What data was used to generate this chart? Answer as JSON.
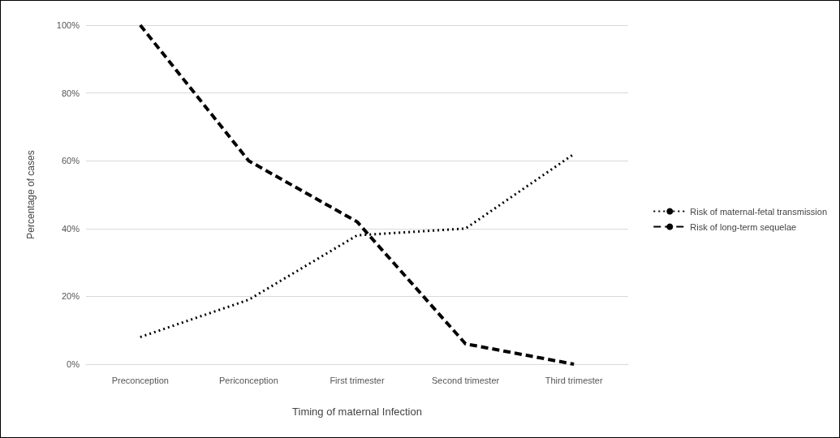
{
  "chart_data": {
    "type": "line",
    "xlabel": "Timing of maternal Infection",
    "ylabel": "Percentage of cases",
    "categories": [
      "Preconception",
      "Periconception",
      "First trimester",
      "Second trimester",
      "Third trimester"
    ],
    "series": [
      {
        "name": "Risk of maternal-fetal transmission",
        "color": "#000000",
        "line_style": "dotted",
        "values": [
          8,
          19,
          38,
          40,
          62
        ]
      },
      {
        "name": "Risk of long-term sequelae",
        "color": "#000000",
        "line_style": "dashed",
        "values": [
          100,
          60,
          42,
          6,
          0
        ]
      }
    ],
    "ylim": [
      0,
      100
    ],
    "yticks": [
      {
        "value": 0,
        "label": "0%"
      },
      {
        "value": 20,
        "label": "20%"
      },
      {
        "value": 40,
        "label": "40%"
      },
      {
        "value": 60,
        "label": "60%"
      },
      {
        "value": 80,
        "label": "80%"
      },
      {
        "value": 100,
        "label": "100%"
      }
    ],
    "grid": "y",
    "legend": "right",
    "marker": "none"
  }
}
